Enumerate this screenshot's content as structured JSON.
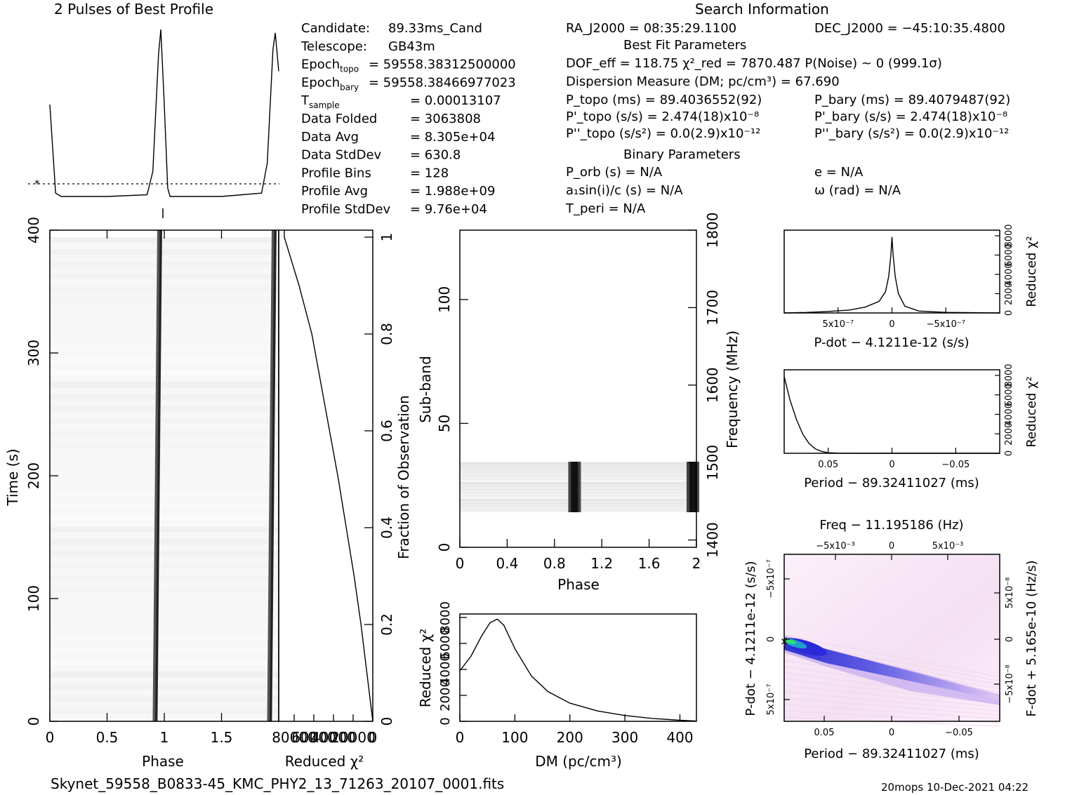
{
  "header": {
    "profile_title": "2 Pulses of Best Profile",
    "search_title": "Search Information",
    "best_fit_title": "Best Fit Parameters",
    "binary_title": "Binary Parameters"
  },
  "candidate_info": [
    {
      "label": "Candidate:",
      "value": "89.33ms_Cand"
    },
    {
      "label": "Telescope:",
      "value": "GB43m"
    },
    {
      "label": "Epoch",
      "sub": "topo",
      "value": "= 59558.38312500000"
    },
    {
      "label": "Epoch",
      "sub": "bary",
      "value": "= 59558.38466977023"
    },
    {
      "label": "T",
      "sub": "sample",
      "value": "=   0.00013107"
    },
    {
      "label": "Data Folded",
      "value": "=   3063808"
    },
    {
      "label": "Data Avg",
      "value": "=   8.305e+04"
    },
    {
      "label": "Data StdDev",
      "value": "=   630.8"
    },
    {
      "label": "Profile Bins",
      "value": "=   128"
    },
    {
      "label": "Profile Avg",
      "value": "=   1.988e+09"
    },
    {
      "label": "Profile StdDev",
      "value": "=   9.76e+04"
    }
  ],
  "search_info": {
    "ra": "RA_J2000 = 08:35:29.1100",
    "dec": "DEC_J2000 = −45:10:35.4800",
    "dof": "DOF_eff = 118.75  χ²_red = 7870.487  P(Noise) ~ 0   (999.1σ)",
    "dm": "Dispersion Measure (DM; pc/cm³) = 67.690",
    "p_topo": "P_topo (ms) =  89.4036552(92)",
    "p_bary": "P_bary (ms) =  89.4079487(92)",
    "pd_topo": "P'_topo (s/s) =  2.474(18)x10⁻⁸",
    "pd_bary": "P'_bary (s/s) =  2.474(18)x10⁻⁸",
    "pdd_topo": "P''_topo (s/s²) = 0.0(2.9)x10⁻¹²",
    "pdd_bary": "P''_bary (s/s²) = 0.0(2.9)x10⁻¹²",
    "porb": "P_orb (s) = N/A",
    "e": "e = N/A",
    "a1": "a₁sin(i)/c (s) = N/A",
    "omega": "ω (rad) = N/A",
    "tperi": "T_peri = N/A"
  },
  "footer": {
    "filename": "Skynet_59558_B0833-45_KMC_PHY2_13_71263_20107_0001.fits",
    "stamp": "20mops 10-Dec-2021 04:22"
  },
  "chart_data": [
    {
      "type": "line",
      "name": "profile",
      "title": "2 Pulses of Best Profile",
      "x": [
        0,
        0.05,
        0.1,
        0.5,
        0.85,
        0.9,
        0.95,
        0.97,
        1.0,
        1.03,
        1.05,
        1.1,
        1.5,
        1.85,
        1.9,
        1.95,
        1.97,
        2.0
      ],
      "y": [
        0.55,
        0.02,
        0.0,
        0.0,
        0.01,
        0.15,
        0.85,
        1.0,
        0.55,
        0.05,
        0.0,
        0.0,
        0.0,
        0.02,
        0.2,
        0.88,
        0.98,
        0.75
      ],
      "mean_line": 0.08
    },
    {
      "type": "heatmap",
      "name": "time-phase",
      "xlabel": "Phase",
      "ylabel": "Time (s)",
      "xlim": [
        0,
        2
      ],
      "ylim": [
        0,
        400
      ],
      "xticks": [
        "0",
        "0.5",
        "1",
        "1.5"
      ],
      "yticks": [
        "0",
        "100",
        "200",
        "300",
        "400"
      ],
      "pulse_track": {
        "time": [
          0,
          400
        ],
        "phase": [
          0.93,
          0.98
        ]
      }
    },
    {
      "type": "line",
      "name": "chi2-vs-time",
      "xlabel": "Reduced χ²",
      "ylabel": "Fraction of Observation",
      "xticks": [
        "80000",
        "60000",
        "40000",
        "20000",
        "0"
      ],
      "yticks": [
        "0",
        "0.2",
        "0.4",
        "0.6",
        "0.8",
        "1"
      ],
      "fraction": [
        0,
        0.1,
        0.2,
        0.3,
        0.4,
        0.5,
        0.6,
        0.7,
        0.8,
        0.9,
        1.0
      ],
      "chi2": [
        0,
        6000,
        12000,
        19000,
        27000,
        35000,
        44000,
        53000,
        62000,
        75000,
        90000
      ]
    },
    {
      "type": "heatmap",
      "name": "subband-phase",
      "xlabel": "Phase",
      "ylabel": "Sub-band",
      "y2label": "Frequency (MHz)",
      "xticks": [
        "0",
        "0.4",
        "0.8",
        "1.2",
        "1.6",
        "2"
      ],
      "yticks": [
        "0",
        "50",
        "100"
      ],
      "y2ticks": [
        "1400",
        "1500",
        "1600",
        "1700",
        "1800"
      ],
      "active_subbands": [
        14,
        35
      ],
      "pulse_phases": [
        0.97,
        1.97
      ]
    },
    {
      "type": "line",
      "name": "dm-curve",
      "xlabel": "DM (pc/cm³)",
      "ylabel": "Reduced χ²",
      "xticks": [
        "0",
        "100",
        "200",
        "300",
        "400"
      ],
      "yticks": [
        "0",
        "2000",
        "4000",
        "6000",
        "8000"
      ],
      "x": [
        0,
        20,
        40,
        55,
        68,
        80,
        100,
        130,
        160,
        200,
        250,
        300,
        350,
        400,
        430
      ],
      "y": [
        3900,
        5000,
        6600,
        7600,
        7870,
        7400,
        5600,
        3500,
        2300,
        1400,
        800,
        450,
        220,
        80,
        20
      ]
    },
    {
      "type": "line",
      "name": "pdot-curve",
      "xlabel": "P-dot − 4.1211e-12 (s/s)",
      "ylabel": "Reduced χ²",
      "xticks": [
        "5x10⁻⁷",
        "0",
        "−5x10⁻⁷"
      ],
      "yticks": [
        "0",
        "2000",
        "4000",
        "6000",
        "8000"
      ],
      "x": [
        1.0,
        0.8,
        0.6,
        0.4,
        0.25,
        0.12,
        0.06,
        0.03,
        0.01,
        0.0,
        -0.01,
        -0.03,
        -0.06,
        -0.12,
        -0.25,
        -0.5,
        -1.0
      ],
      "y": [
        0,
        50,
        150,
        300,
        600,
        1200,
        2200,
        3800,
        6000,
        7870,
        6200,
        3800,
        2000,
        700,
        200,
        60,
        0
      ]
    },
    {
      "type": "line",
      "name": "period-curve",
      "xlabel": "Period − 89.32411027 (ms)",
      "ylabel": "Reduced χ²",
      "xticks": [
        "0.05",
        "0",
        "−0.05"
      ],
      "yticks": [
        "0",
        "2000",
        "4000",
        "6000",
        "8000"
      ],
      "x": [
        0.0845,
        0.08,
        0.075,
        0.07,
        0.065,
        0.06,
        0.055,
        0.05,
        0.04,
        0.0,
        -0.05,
        -0.0845
      ],
      "y": [
        7870,
        5500,
        3500,
        2000,
        1000,
        450,
        180,
        60,
        10,
        0,
        0,
        0
      ]
    },
    {
      "type": "heatmap",
      "name": "period-pdot-plane",
      "title": "Freq − 11.195186 (Hz)",
      "xlabel": "Period − 89.32411027 (ms)",
      "ylabel": "P-dot − 4.1211e-12 (s/s)",
      "y2label": "F-dot + 5.165e-10 (Hz/s)",
      "xticks": [
        "0.05",
        "0",
        "−0.05"
      ],
      "x2ticks": [
        "−5x10⁻³",
        "0",
        "5x10⁻³"
      ],
      "yticks": [
        "5x10⁻⁷",
        "0",
        "−5x10⁻⁷"
      ],
      "y2ticks": [
        "−5x10⁻⁸",
        "0",
        "5x10⁻⁸"
      ],
      "colors": [
        "#ffffff",
        "#f2d6ee",
        "#c9b0f0",
        "#5a5ae6",
        "#2a2ad8",
        "#1fa0d0",
        "#30e070"
      ]
    }
  ]
}
